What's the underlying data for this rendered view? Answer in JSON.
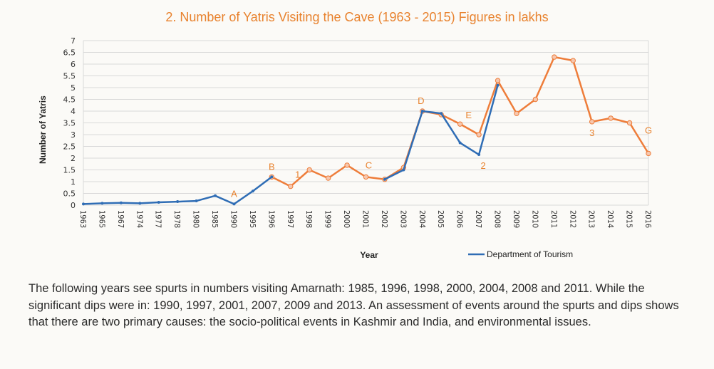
{
  "chart_data": {
    "type": "line",
    "title": "2. Number of Yatris Visiting the Cave (1963 - 2015) Figures in lakhs",
    "xlabel": "Year",
    "ylabel": "Number of Yatris",
    "ylim": [
      0,
      7
    ],
    "yticks": [
      "0",
      "0.5",
      "1",
      "1.5",
      "2",
      "2.5",
      "3",
      "3.5",
      "4",
      "4.5",
      "5",
      "5.5",
      "6",
      "6.5",
      "7"
    ],
    "grid": true,
    "legend_position": "bottom-right",
    "categories": [
      "1963",
      "1965",
      "1967",
      "1974",
      "1977",
      "1978",
      "1980",
      "1985",
      "1990",
      "1995",
      "1996",
      "1997",
      "1998",
      "1999",
      "2000",
      "2001",
      "2002",
      "2003",
      "2004",
      "2005",
      "2006",
      "2007",
      "2008",
      "2009",
      "2010",
      "2011",
      "2012",
      "2013",
      "2014",
      "2015",
      "2016"
    ],
    "series": [
      {
        "name": "Department of Tourism",
        "color": "#2f6db5",
        "values": [
          0.05,
          0.08,
          0.1,
          0.08,
          0.12,
          0.15,
          0.18,
          0.4,
          0.05,
          0.6,
          1.2,
          null,
          null,
          null,
          null,
          null,
          1.1,
          1.5,
          4.0,
          3.9,
          2.65,
          2.15,
          5.1,
          null,
          null,
          null,
          null,
          null,
          null,
          null,
          null
        ]
      },
      {
        "name": "",
        "color": "#ee7d3a",
        "values": [
          null,
          null,
          null,
          null,
          null,
          null,
          null,
          null,
          null,
          null,
          1.2,
          0.8,
          1.5,
          1.15,
          1.7,
          1.2,
          1.1,
          1.6,
          4.0,
          3.85,
          3.45,
          3.0,
          5.3,
          3.9,
          4.5,
          6.3,
          6.15,
          3.55,
          3.7,
          3.5,
          2.2
        ]
      }
    ],
    "annotations": [
      {
        "label": "A",
        "category": "1990",
        "value": 0.05
      },
      {
        "label": "B",
        "category": "1996",
        "value": 1.2
      },
      {
        "label": "1",
        "category": "1997",
        "value": 0.8
      },
      {
        "label": "C",
        "category": "2001",
        "value": 1.2
      },
      {
        "label": "D",
        "category": "2004",
        "value": 4.0
      },
      {
        "label": "E",
        "category": "2006",
        "value": 3.45
      },
      {
        "label": "2",
        "category": "2007",
        "value": 2.15
      },
      {
        "label": "3",
        "category": "2013",
        "value": 3.55
      },
      {
        "label": "G",
        "category": "2016",
        "value": 2.2
      }
    ]
  },
  "caption": "The following years see spurts in numbers visiting Amarnath: 1985, 1996, 1998, 2000, 2004, 2008 and 2011. While the significant dips were in: 1990, 1997, 2001, 2007, 2009 and 2013. An assessment of events around the spurts and dips shows that there are two primary causes: the socio-political events in Kashmir and India, and environmental issues."
}
